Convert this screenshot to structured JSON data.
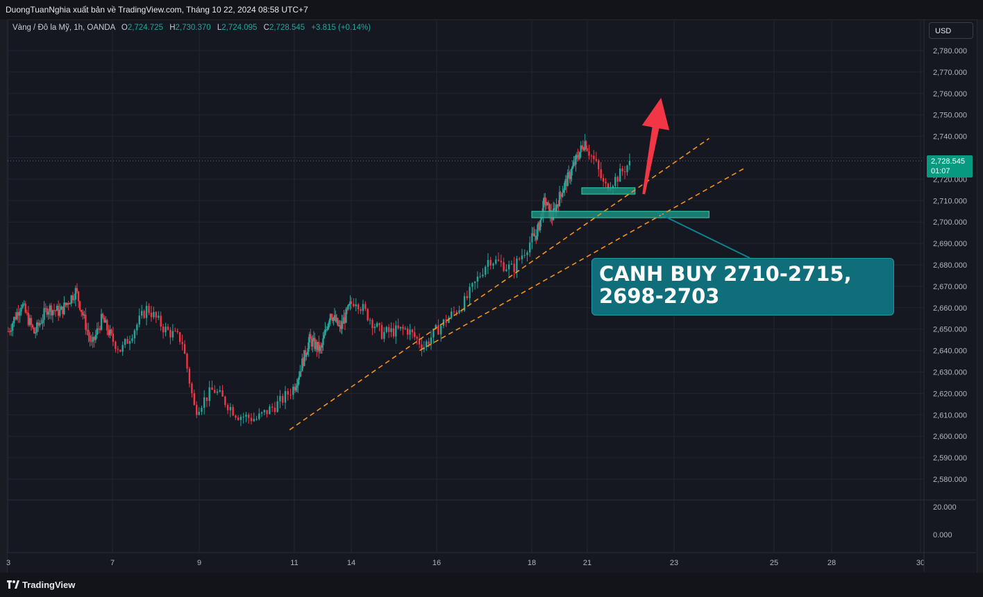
{
  "header": {
    "title": "DuongTuanNghia xuất bản về TradingView.com, Tháng 10 22, 2024 08:58 UTC+7"
  },
  "legend": {
    "symbol": "Vàng / Đô la Mỹ, 1h, OANDA",
    "o_label": "O",
    "o_value": "2,724.725",
    "h_label": "H",
    "h_value": "2,730.370",
    "l_label": "L",
    "l_value": "2,724.095",
    "c_label": "C",
    "c_value": "2,728.545",
    "change": "+3.815 (+0.14%)"
  },
  "currency_button": "USD",
  "last_price": {
    "value": "2,728.545",
    "countdown": "01:07"
  },
  "callout": {
    "line1": "CANH BUY 2710-2715,",
    "line2": "2698-2703"
  },
  "footer": {
    "brand": "TradingView"
  },
  "colors": {
    "up": "#26a69a",
    "down": "#f23645",
    "trendline": "#f7931a",
    "zone": "#1b8e7c",
    "arrow": "#f23645",
    "background": "#161821"
  },
  "chart_data": {
    "type": "candlestick",
    "price_axis": {
      "ylim": [
        2575,
        2785
      ],
      "ticks": [
        "2,780.000",
        "2,770.000",
        "2,760.000",
        "2,750.000",
        "2,740.000",
        "2,730.000",
        "2,720.000",
        "2,710.000",
        "2,700.000",
        "2,690.000",
        "2,680.000",
        "2,670.000",
        "2,660.000",
        "2,650.000",
        "2,640.000",
        "2,630.000",
        "2,620.000",
        "2,610.000",
        "2,600.000",
        "2,590.000",
        "2,580.000"
      ]
    },
    "indicator_axis": {
      "ticks": [
        "20.000",
        "0.000"
      ]
    },
    "date_axis": {
      "ticks": [
        "3",
        "7",
        "9",
        "11",
        "14",
        "16",
        "18",
        "21",
        "23",
        "25",
        "28",
        "30"
      ]
    },
    "price_path": [
      [
        3,
        2649
      ],
      [
        3.5,
        2662
      ],
      [
        4,
        2648
      ],
      [
        4.5,
        2660
      ],
      [
        5,
        2658
      ],
      [
        5.6,
        2668
      ],
      [
        6.2,
        2642
      ],
      [
        6.6,
        2655
      ],
      [
        7.2,
        2640
      ],
      [
        7.8,
        2660
      ],
      [
        8.2,
        2650
      ],
      [
        8.6,
        2645
      ],
      [
        8.9,
        2612
      ],
      [
        9.3,
        2622
      ],
      [
        9.8,
        2610
      ],
      [
        10.2,
        2608
      ],
      [
        10.7,
        2616
      ],
      [
        11.2,
        2628
      ],
      [
        11.8,
        2645
      ],
      [
        12.4,
        2640
      ],
      [
        12.9,
        2658
      ],
      [
        13.4,
        2650
      ],
      [
        14.1,
        2664
      ],
      [
        14.7,
        2648
      ],
      [
        15.3,
        2650
      ],
      [
        15.7,
        2642
      ],
      [
        16.1,
        2652
      ],
      [
        16.6,
        2663
      ],
      [
        17.1,
        2683
      ],
      [
        17.6,
        2678
      ],
      [
        18.0,
        2692
      ],
      [
        18.3,
        2695
      ],
      [
        18.7,
        2710
      ],
      [
        19.1,
        2702
      ],
      [
        19.6,
        2714
      ],
      [
        20.1,
        2723
      ],
      [
        20.5,
        2731
      ],
      [
        20.9,
        2738
      ],
      [
        21.2,
        2727
      ],
      [
        21.4,
        2716
      ],
      [
        21.7,
        2721
      ],
      [
        22.0,
        2728.5
      ]
    ],
    "trendlines": [
      {
        "from": [
          10.9,
          2603
        ],
        "to": [
          23.7,
          2739
        ]
      },
      {
        "from": [
          15.6,
          2640
        ],
        "to": [
          24.4,
          2725
        ]
      }
    ],
    "zones": [
      {
        "from_date": 20.7,
        "to_date": 22.1,
        "low": 2713,
        "high": 2716
      },
      {
        "from_date": 18.0,
        "to_date": 23.7,
        "low": 2702,
        "high": 2705
      }
    ],
    "arrow": {
      "from": [
        22.3,
        2713
      ],
      "to": [
        22.7,
        2758
      ]
    },
    "last_close": 2728.545
  }
}
